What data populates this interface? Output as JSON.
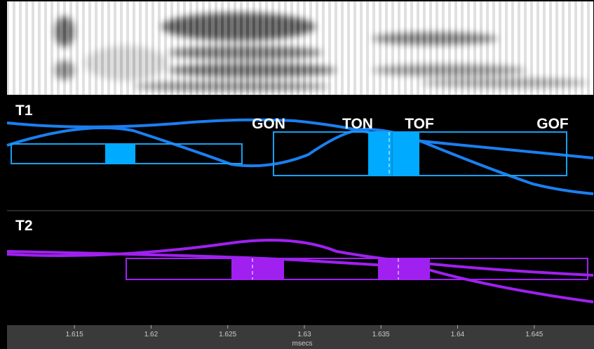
{
  "panels": [
    {
      "label": "T1"
    },
    {
      "label": "T2"
    }
  ],
  "annotations": [
    "GON",
    "TON",
    "TOF",
    "GOF"
  ],
  "axis": {
    "xlim": [
      1.6106,
      1.6489
    ],
    "xticks": [
      1.615,
      1.62,
      1.625,
      1.63,
      1.635,
      1.64,
      1.645
    ],
    "xlabel": "msecs"
  }
}
